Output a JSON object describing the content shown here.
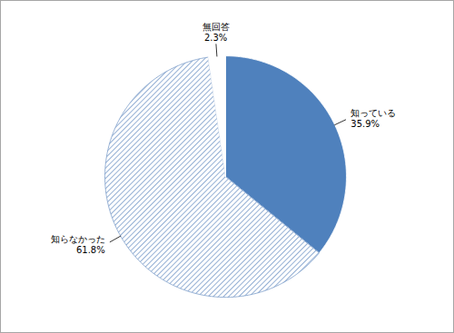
{
  "chart_data": {
    "type": "pie",
    "categories": [
      "知っている",
      "知らなかった",
      "無回答"
    ],
    "values": [
      35.9,
      61.8,
      2.3
    ],
    "value_labels": [
      "35.9%",
      "61.8%",
      "2.3%"
    ],
    "colors": [
      "#4f81bd",
      "#7a9cc9",
      "#ffffff"
    ],
    "data_labels": true
  }
}
